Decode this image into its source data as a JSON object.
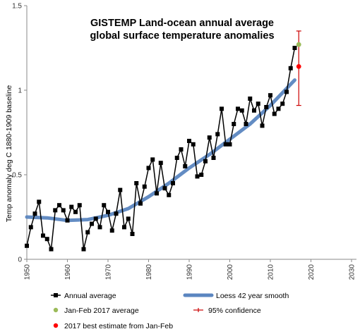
{
  "chart_data": {
    "type": "line",
    "title_line1": "GISTEMP Land-ocean annual average",
    "title_line2": "global surface temperature anomalies",
    "xlabel": "",
    "ylabel": "Temp anomaly deg C 1880-1909 baseline",
    "xlim": [
      1950,
      2030
    ],
    "ylim": [
      0,
      1.5
    ],
    "x_ticks": [
      "1950",
      "1960",
      "1970",
      "1980",
      "1990",
      "2000",
      "2010",
      "2020",
      "2030"
    ],
    "y_ticks": [
      "0",
      "0.5",
      "1",
      "1.5"
    ],
    "grid": false,
    "colors": {
      "annual": "#000000",
      "loess": "#5b86c0",
      "janfeb": "#9bbb59",
      "best": "#ff0000",
      "confidence": "#cc0000"
    },
    "series": [
      {
        "name": "Annual average",
        "x": [
          1950,
          1951,
          1952,
          1953,
          1954,
          1955,
          1956,
          1957,
          1958,
          1959,
          1960,
          1961,
          1962,
          1963,
          1964,
          1965,
          1966,
          1967,
          1968,
          1969,
          1970,
          1971,
          1972,
          1973,
          1974,
          1975,
          1976,
          1977,
          1978,
          1979,
          1980,
          1981,
          1982,
          1983,
          1984,
          1985,
          1986,
          1987,
          1988,
          1989,
          1990,
          1991,
          1992,
          1993,
          1994,
          1995,
          1996,
          1997,
          1998,
          1999,
          2000,
          2001,
          2002,
          2003,
          2004,
          2005,
          2006,
          2007,
          2008,
          2009,
          2010,
          2011,
          2012,
          2013,
          2014,
          2015,
          2016
        ],
        "values": [
          0.08,
          0.19,
          0.27,
          0.34,
          0.14,
          0.12,
          0.06,
          0.29,
          0.32,
          0.29,
          0.23,
          0.31,
          0.28,
          0.32,
          0.06,
          0.16,
          0.21,
          0.24,
          0.19,
          0.32,
          0.28,
          0.17,
          0.27,
          0.41,
          0.19,
          0.24,
          0.15,
          0.45,
          0.33,
          0.43,
          0.54,
          0.59,
          0.39,
          0.57,
          0.42,
          0.38,
          0.45,
          0.6,
          0.65,
          0.55,
          0.7,
          0.68,
          0.49,
          0.5,
          0.58,
          0.72,
          0.6,
          0.74,
          0.89,
          0.68,
          0.68,
          0.8,
          0.89,
          0.88,
          0.8,
          0.95,
          0.88,
          0.92,
          0.79,
          0.9,
          0.97,
          0.86,
          0.89,
          0.92,
          0.99,
          1.13,
          1.25
        ]
      },
      {
        "name": "Loess 42 year smooth",
        "x": [
          1950,
          1955,
          1960,
          1965,
          1970,
          1975,
          1980,
          1985,
          1990,
          1995,
          2000,
          2005,
          2010,
          2016
        ],
        "values": [
          0.25,
          0.245,
          0.23,
          0.235,
          0.26,
          0.3,
          0.37,
          0.45,
          0.54,
          0.62,
          0.71,
          0.8,
          0.91,
          1.06
        ]
      }
    ],
    "janfeb_2017_average": {
      "x": 2017,
      "value": 1.27
    },
    "best_estimate_2017": {
      "x": 2017,
      "value": 1.14,
      "ci_low": 0.91,
      "ci_high": 1.35
    },
    "legend": {
      "placement": "bottom",
      "items": [
        "Annual average",
        "Loess 42 year smooth",
        "Jan-Feb 2017 average",
        "95% confidence",
        "2017 best estimate from Jan-Feb"
      ]
    }
  }
}
